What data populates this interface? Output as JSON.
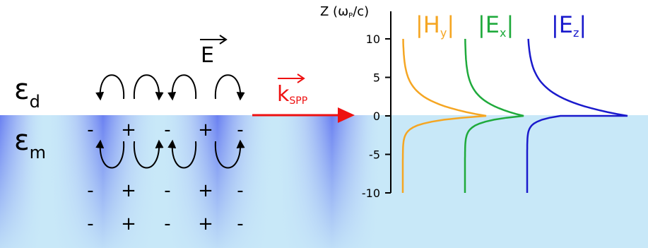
{
  "left_panel": {
    "dielectric_label": "ε",
    "dielectric_sub": "d",
    "metal_label": "ε",
    "metal_sub": "m",
    "field_label": "E",
    "wavevector_label": "k",
    "wavevector_sub": "SPP",
    "charge_rows": [
      [
        "-",
        "+",
        "-",
        "+",
        "-"
      ],
      [
        "-",
        "+",
        "-",
        "+",
        "-"
      ],
      [
        "-",
        "+",
        "-",
        "+",
        "-"
      ]
    ]
  },
  "chart_data": {
    "type": "line",
    "ylabel_prefix": "Z (ω",
    "ylabel_sub": "P",
    "ylabel_suffix": "/c)",
    "ylim": [
      -10,
      10
    ],
    "yticks": [
      "10",
      "5",
      "0",
      "-5",
      "-10"
    ],
    "series_labels": [
      {
        "main": "|H",
        "sub": "y",
        "tail": "|"
      },
      {
        "main": "|E",
        "sub": "x",
        "tail": "|"
      },
      {
        "main": "|E",
        "sub": "z",
        "tail": "|"
      }
    ]
  },
  "colors": {
    "hy": "#f5a623",
    "ex": "#1faa3c",
    "ez": "#1a1acc",
    "arrow_red": "#ee1111",
    "metal_bg": "#c8e8f8",
    "metal_blob": "#5a6ef0"
  }
}
